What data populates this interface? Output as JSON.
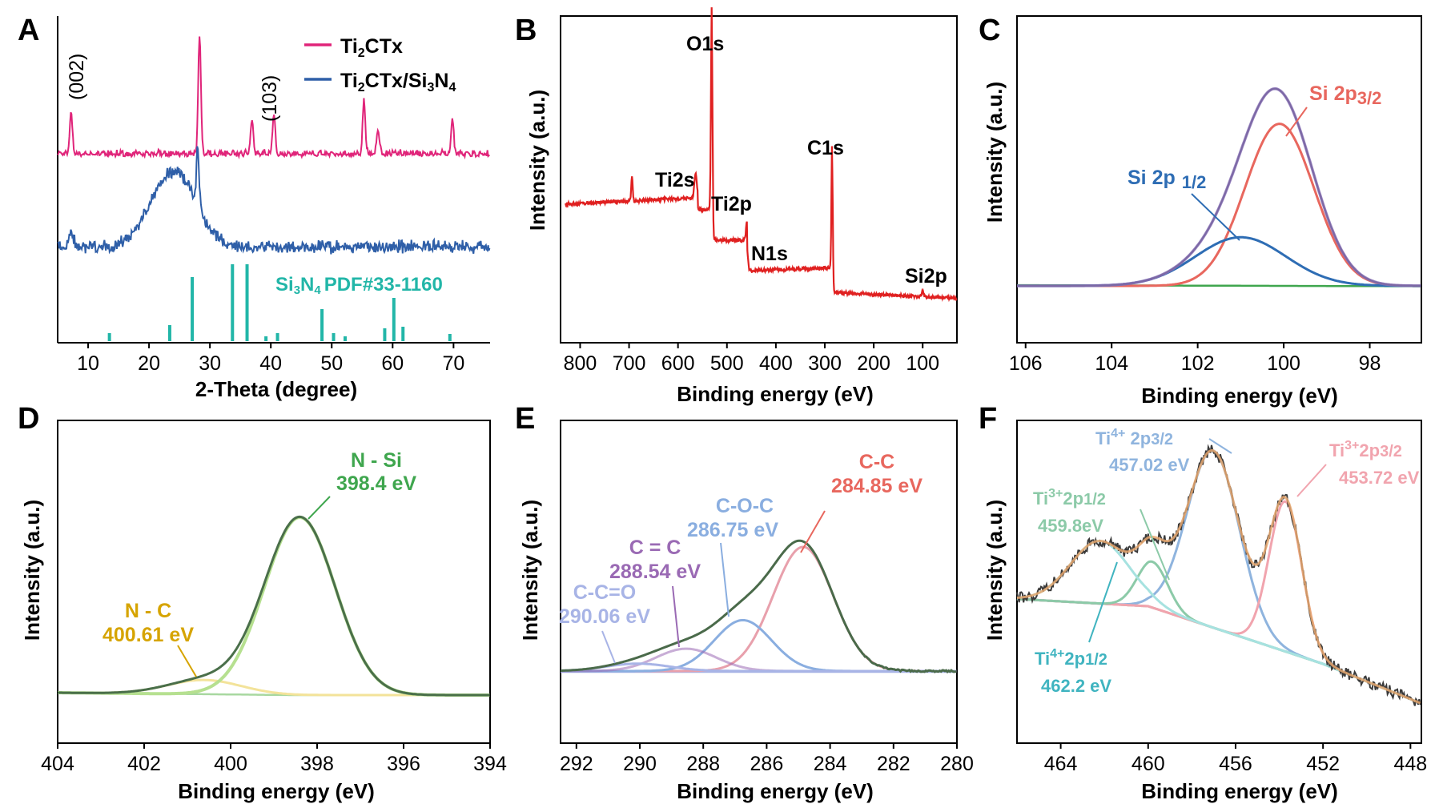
{
  "colors": {
    "pink": "#e0257a",
    "blue": "#2f5fa8",
    "teal": "#22b6a8",
    "red": "#e02020",
    "purple": "#8a72b8",
    "salmon": "#e8675e",
    "blueC": "#2e6db4",
    "greenC": "#3fa64e",
    "dkgreen": "#3c5a3c",
    "lime": "#b6e090",
    "gold": "#d6a400",
    "ltgreen": "#a8d8a0",
    "dkolive": "#4a6f4a",
    "pinkE": "#f0a3a8",
    "ltblue": "#a9c3e6",
    "lavender": "#dab4e0",
    "lavblue": "#a7b6ea",
    "brown": "#5a4a3a",
    "orange": "#e8a870",
    "ltblueF": "#a7c4e4",
    "pinkF": "#ef9aa4",
    "mint": "#9ed8b4",
    "cyanF": "#a6e2e0",
    "bgF": "#b8b090",
    "E_pink": "#e8a0ac",
    "E_purple": "#9a6ab4",
    "E_blue": "#8aaee0",
    "E_lav": "#a8b4e6",
    "F_blue": "#8fb4de",
    "F_pink": "#f1a4ae",
    "F_green": "#8ccaa8",
    "F_cyan": "#40b4c0"
  },
  "chart_data": [
    {
      "id": "A",
      "panel_letter": "A",
      "type": "line",
      "xlabel": "2-Theta (degree)",
      "ylabel": "",
      "xlim": [
        5,
        76
      ],
      "xticks": [
        "10",
        "20",
        "30",
        "40",
        "50",
        "60",
        "70"
      ],
      "series": [
        {
          "name": "Ti₂CTx",
          "legend": "Ti2CTx",
          "peaks": [
            [
              7.2,
              0.35
            ],
            [
              28.3,
              1.0
            ],
            [
              36.9,
              0.28
            ],
            [
              40.5,
              0.34
            ],
            [
              55.3,
              0.45
            ],
            [
              57.6,
              0.2
            ],
            [
              69.8,
              0.28
            ]
          ]
        },
        {
          "name": "Ti₂CTx/Si₃N₄",
          "legend": "Ti2CTx/Si3N4",
          "peaks": [
            [
              7.2,
              0.12
            ],
            [
              24,
              0.55
            ],
            [
              28.0,
              0.42
            ]
          ]
        },
        {
          "name": "Si₃N₄ PDF#33-1160",
          "type": "stick",
          "sticks": [
            [
              13.5,
              0.1
            ],
            [
              23.4,
              0.2
            ],
            [
              27.1,
              0.8
            ],
            [
              33.7,
              0.96
            ],
            [
              36.1,
              0.96
            ],
            [
              39.2,
              0.06
            ],
            [
              41.1,
              0.1
            ],
            [
              48.4,
              0.4
            ],
            [
              50.3,
              0.1
            ],
            [
              52.2,
              0.06
            ],
            [
              58.7,
              0.16
            ],
            [
              60.2,
              0.54
            ],
            [
              61.7,
              0.18
            ],
            [
              69.4,
              0.09
            ]
          ]
        }
      ],
      "annotations": [
        "(002)",
        "(103)"
      ],
      "legend_labels": [
        "Ti2CTx",
        "Ti2CTx/Si3N4"
      ],
      "stick_label": "Si3N4 PDF#33-1160"
    },
    {
      "id": "B",
      "panel_letter": "B",
      "type": "line",
      "xlabel": "Binding energy (eV)",
      "ylabel": "Intensity (a.u.)",
      "xlim": [
        840,
        30
      ],
      "xticks": [
        "800",
        "700",
        "600",
        "500",
        "400",
        "300",
        "200",
        "100"
      ],
      "series": [
        {
          "name": "survey",
          "peaks": [
            [
              531,
              1.0
            ],
            [
              285,
              0.6
            ],
            [
              564,
              0.24
            ],
            [
              459,
              0.32
            ],
            [
              694,
              0.25
            ],
            [
              100,
              0.03
            ]
          ]
        }
      ],
      "annotations": [
        "O1s",
        "Ti2s",
        "Ti2p",
        "N1s",
        "C1s",
        "Si2p"
      ]
    },
    {
      "id": "C",
      "panel_letter": "C",
      "type": "line",
      "xlabel": "Binding energy (eV)",
      "ylabel": "Intensity (a.u.)",
      "xlim": [
        106.2,
        96.8
      ],
      "xticks": [
        "106",
        "104",
        "102",
        "100",
        "98"
      ],
      "series": [
        {
          "name": "Si 2p3/2",
          "center": 100.1,
          "height": 1.0
        },
        {
          "name": "Si 2p1/2",
          "center": 101.0,
          "height": 0.3
        },
        {
          "name": "envelope"
        },
        {
          "name": "background"
        }
      ],
      "annotations": [
        "Si 2p3/2",
        "Si 2p 1/2"
      ]
    },
    {
      "id": "D",
      "panel_letter": "D",
      "type": "line",
      "xlabel": "Binding energy (eV)",
      "ylabel": "Intensity (a.u.)",
      "xlim": [
        404,
        394
      ],
      "xticks": [
        "404",
        "402",
        "400",
        "398",
        "396",
        "394"
      ],
      "series": [
        {
          "name": "N-Si",
          "center": 398.4,
          "height": 1.0
        },
        {
          "name": "N-C",
          "center": 400.61,
          "height": 0.08
        },
        {
          "name": "envelope"
        },
        {
          "name": "background"
        }
      ],
      "annotations": [
        "N - Si",
        "398.4 eV",
        "N - C",
        "400.61 eV"
      ]
    },
    {
      "id": "E",
      "panel_letter": "E",
      "type": "line",
      "xlabel": "Binding energy (eV)",
      "ylabel": "Intensity (a.u.)",
      "xlim": [
        292.5,
        280
      ],
      "xticks": [
        "292",
        "290",
        "288",
        "286",
        "284",
        "282",
        "280"
      ],
      "series": [
        {
          "name": "C-C",
          "center": 284.85,
          "height": 1.0
        },
        {
          "name": "C-O-C",
          "center": 286.75,
          "height": 0.41
        },
        {
          "name": "C=C",
          "center": 288.54,
          "height": 0.18
        },
        {
          "name": "C-C=O",
          "center": 290.06,
          "height": 0.06
        },
        {
          "name": "envelope"
        },
        {
          "name": "background"
        }
      ],
      "annotations": [
        "C-C",
        "284.85 eV",
        "C-O-C",
        "286.75 eV",
        "C = C",
        "288.54 eV",
        "C-C=O",
        "290.06 eV"
      ]
    },
    {
      "id": "F",
      "panel_letter": "F",
      "type": "line",
      "xlabel": "Binding energy (eV)",
      "ylabel": "Intensity (a.u.)",
      "xlim": [
        466,
        447.5
      ],
      "xticks": [
        "464",
        "460",
        "456",
        "452",
        "448"
      ],
      "series": [
        {
          "name": "Ti4+ 2p3/2",
          "center": 457.02,
          "height": 0.85
        },
        {
          "name": "Ti3+ 2p3/2",
          "center": 453.72,
          "height": 0.72
        },
        {
          "name": "Ti3+ 2p1/2",
          "center": 459.8,
          "height": 0.22
        },
        {
          "name": "Ti4+ 2p1/2",
          "center": 462.2,
          "height": 0.3
        },
        {
          "name": "envelope"
        },
        {
          "name": "background"
        }
      ],
      "annotations": [
        "Ti4+ 2p 3/2",
        "457.02 eV",
        "Ti3+ 2p 3/2",
        "453.72 eV",
        "Ti3+ 2p 1/2",
        "459.8eV",
        "Ti4+ 2p 1/2",
        "462.2 eV"
      ]
    }
  ],
  "labels": {
    "A": {
      "ann1": "(002)",
      "ann2": "(103)",
      "leg1_main": "Ti",
      "leg1_sub": "2",
      "leg1_rest": "CTx",
      "leg2_main": "Ti",
      "leg2_sub": "2",
      "leg2_mid": "CTx/Si",
      "leg2_sub2": "3",
      "leg2_mid2": "N",
      "leg2_sub3": "4",
      "pdf_main": "Si",
      "pdf_sub": "3",
      "pdf_mid": "N",
      "pdf_sub2": "4",
      "pdf_rest": "PDF#33-1160"
    },
    "B": {
      "O1s": "O1s",
      "Ti2s": "Ti2s",
      "Ti2p": "Ti2p",
      "N1s": "N1s",
      "C1s": "C1s",
      "Si2p": "Si2p"
    },
    "C": {
      "s32_main": "Si 2p",
      "s32_sub": "3/2",
      "s12_main": "Si 2p",
      "s12_sub": "1/2"
    },
    "D": {
      "nsi": "N - Si",
      "nsi_ev": "398.4 eV",
      "nc": "N - C",
      "nc_ev": "400.61 eV"
    },
    "E": {
      "cc": "C-C",
      "cc_ev": "284.85 eV",
      "coc": "C-O-C",
      "coc_ev": "286.75 eV",
      "cdc": "C = C",
      "cdc_ev": "288.54 eV",
      "cco": "C-C=O",
      "cco_ev": "290.06 eV"
    },
    "F": {
      "t4a_main": "Ti",
      "t4a_sup": "4+",
      "t4a_rest": " 2p",
      "t4a_sub": "3/2",
      "t4a_ev": "457.02 eV",
      "t3a_main": "Ti",
      "t3a_sup": "3+",
      "t3a_rest": "2p",
      "t3a_sub": "3/2",
      "t3a_ev": "453.72 eV",
      "t3b_main": "Ti",
      "t3b_sup": "3+",
      "t3b_rest": "2p",
      "t3b_sub": "1/2",
      "t3b_ev": "459.8eV",
      "t4b_main": "Ti",
      "t4b_sup": "4+",
      "t4b_rest": "2p",
      "t4b_sub": "1/2",
      "t4b_ev": "462.2 eV"
    }
  }
}
